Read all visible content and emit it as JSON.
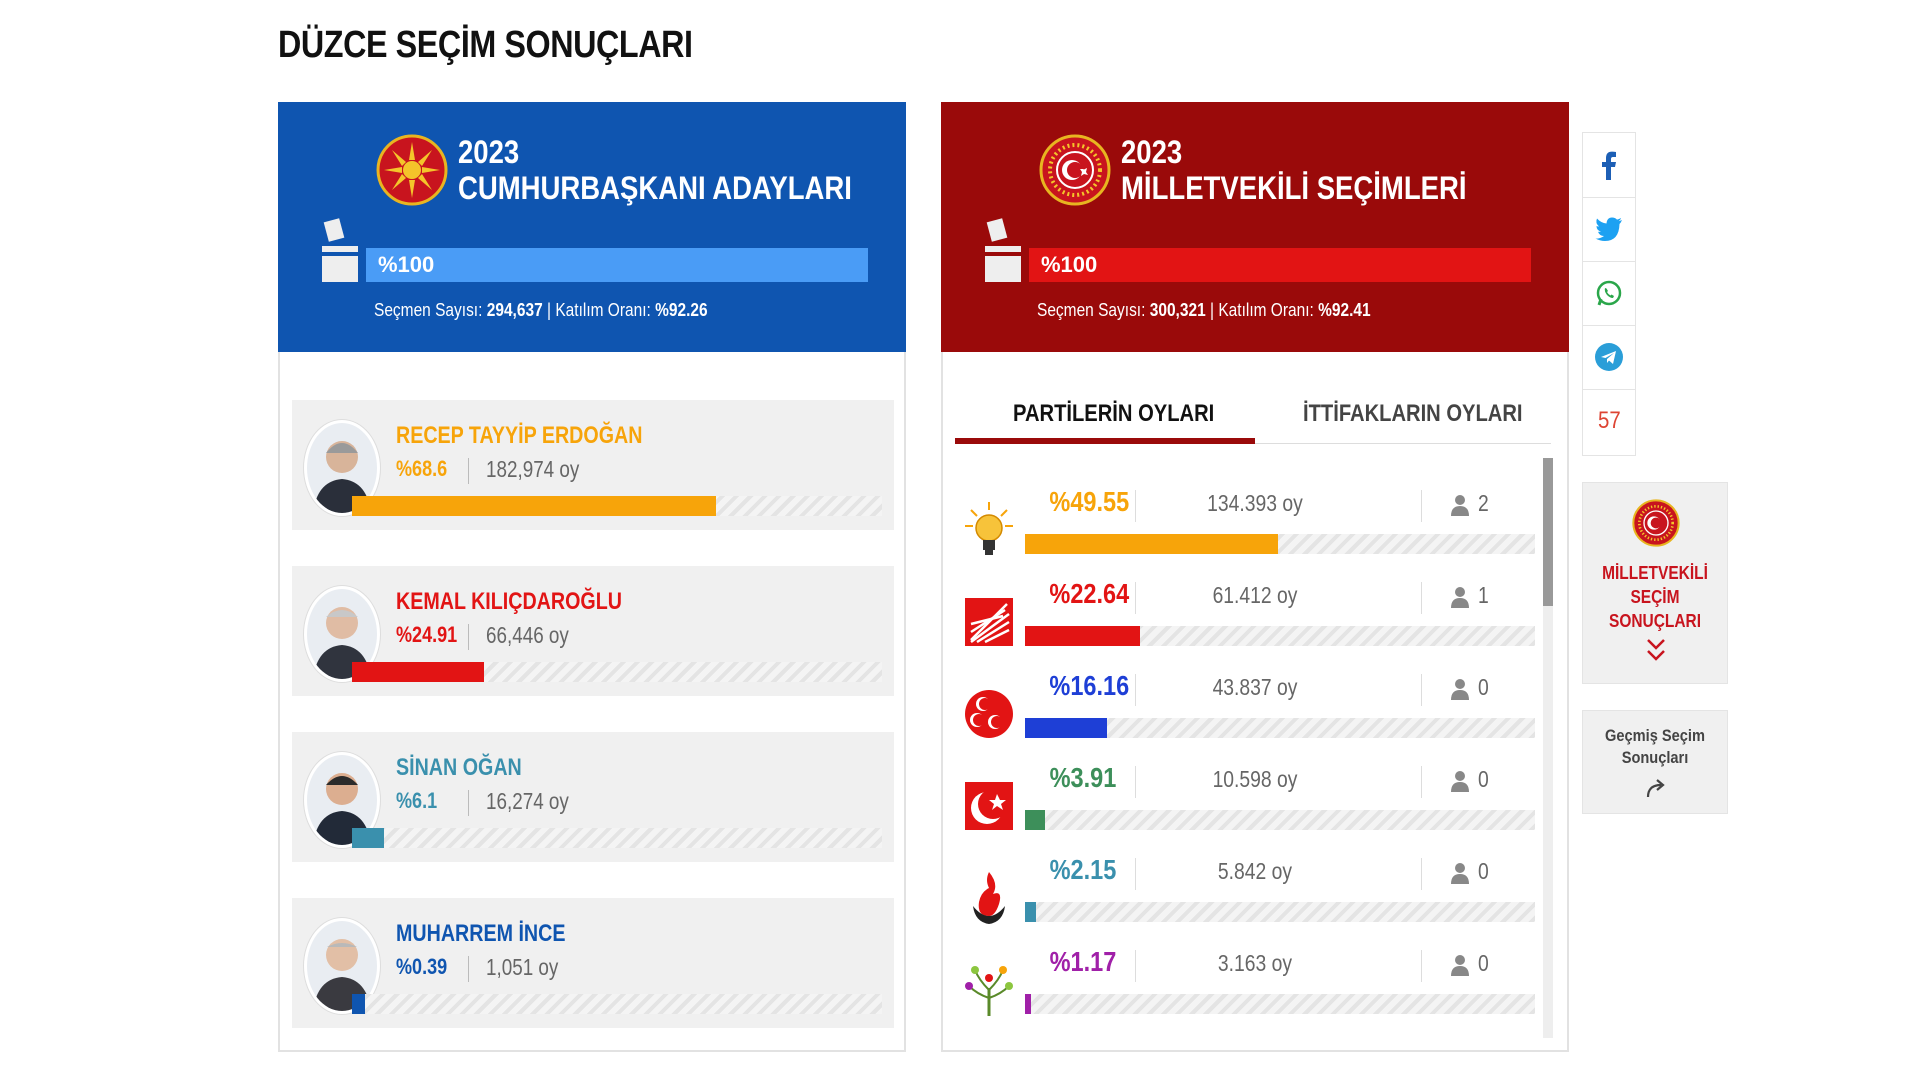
{
  "page": {
    "title": "DÜZCE SEÇİM SONUÇLARI"
  },
  "presidential": {
    "year": "2023",
    "title": "CUMHURBAŞKANI ADAYLARI",
    "progress_label": "%100",
    "progress": 1.0,
    "voters_label": "Seçmen Sayısı:",
    "voters": "294,637",
    "turnout_label": "Katılım Oranı:",
    "turnout": "%92.26",
    "candidates": [
      {
        "name": "RECEP TAYYİP ERDOĞAN",
        "pct": "%68.6",
        "votes": "182,974 oy",
        "share": 0.686,
        "color": "#f7a40a"
      },
      {
        "name": "KEMAL KILIÇDAROĞLU",
        "pct": "%24.91",
        "votes": "66,446 oy",
        "share": 0.2491,
        "color": "#e21414"
      },
      {
        "name": "SİNAN OĞAN",
        "pct": "%6.1",
        "votes": "16,274 oy",
        "share": 0.061,
        "color": "#3a90ad"
      },
      {
        "name": "MUHARREM İNCE",
        "pct": "%0.39",
        "votes": "1,051 oy",
        "share": 0.0039,
        "color": "#0f55b0"
      }
    ]
  },
  "parliament": {
    "year": "2023",
    "title": "MİLLETVEKİLİ SEÇİMLERİ",
    "progress_label": "%100",
    "progress": 1.0,
    "voters_label": "Seçmen Sayısı:",
    "voters": "300,321",
    "turnout_label": "Katılım Oranı:",
    "turnout": "%92.41",
    "tabs": [
      "PARTİLERİN OYLARI",
      "İTTİFAKLARIN OYLARI"
    ],
    "parties": [
      {
        "logo": "akp-bulb-icon",
        "pct": "%49.55",
        "votes": "134.393 oy",
        "seats": "2",
        "share": 0.4955,
        "color": "#f7a40a"
      },
      {
        "logo": "chp-six-arrows-icon",
        "pct": "%22.64",
        "votes": "61.412 oy",
        "seats": "1",
        "share": 0.2264,
        "color": "#e21414"
      },
      {
        "logo": "mhp-crescents-icon",
        "pct": "%16.16",
        "votes": "43.837 oy",
        "seats": "0",
        "share": 0.1616,
        "color": "#1e3fd6"
      },
      {
        "logo": "yrp-crescent-icon",
        "pct": "%3.91",
        "votes": "10.598 oy",
        "seats": "0",
        "share": 0.0391,
        "color": "#3d8f5a"
      },
      {
        "logo": "saadet-flame-icon",
        "pct": "%2.15",
        "votes": "5.842 oy",
        "seats": "0",
        "share": 0.0215,
        "color": "#3a90ad"
      },
      {
        "logo": "ysp-tree-icon",
        "pct": "%1.17",
        "votes": "3.163 oy",
        "seats": "0",
        "share": 0.0117,
        "color": "#a020a8"
      }
    ]
  },
  "sidebar": {
    "share_count": "57",
    "share_icons": [
      "facebook-icon",
      "twitter-icon",
      "whatsapp-icon",
      "telegram-icon"
    ],
    "box1_label_line1": "MİLLETVEKİLİ",
    "box1_label_line2": "SEÇİM SONUÇLARI",
    "box2_label_line1": "Geçmiş Seçim",
    "box2_label_line2": "Sonuçları"
  },
  "colors": {
    "presidential_header": "#0f55b0",
    "parliament_header": "#9a0a0a",
    "presidential_bar": "#4a9cf6",
    "parliament_bar": "#e21414"
  }
}
